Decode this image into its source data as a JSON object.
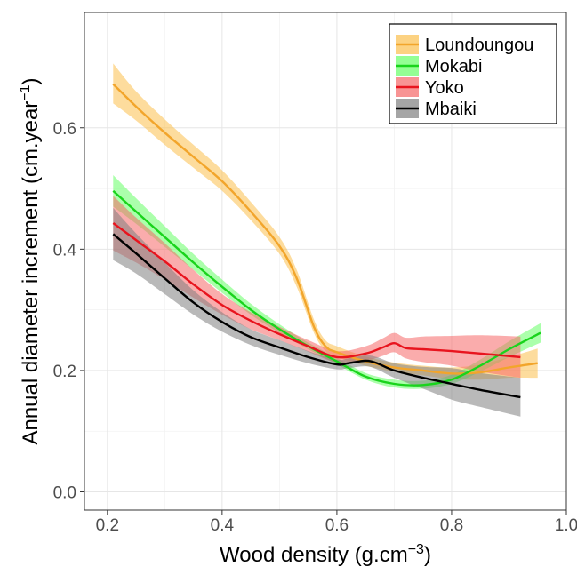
{
  "chart_data": {
    "type": "line",
    "title": "",
    "xlabel": "Wood density (g.cm",
    "xlabel_sup": "−3",
    "xlabel_end": ")",
    "ylabel": "Annual diameter increment (cm.year",
    "ylabel_sup": "−1",
    "ylabel_end": ")",
    "xlim": [
      0.16,
      1.0
    ],
    "ylim": [
      -0.03,
      0.79
    ],
    "x_ticks": [
      0.2,
      0.4,
      0.6,
      0.8,
      1.0
    ],
    "x_tick_labels": [
      "0.2",
      "0.4",
      "0.6",
      "0.8",
      "1.0"
    ],
    "y_ticks": [
      0.0,
      0.2,
      0.4,
      0.6
    ],
    "y_tick_labels": [
      "0.0",
      "0.2",
      "0.4",
      "0.6"
    ],
    "grid": true,
    "legend_position": "top-right",
    "series": [
      {
        "name": "Loundoungou",
        "color": "#f2a52b",
        "band_color": "#fbbf4d",
        "x": [
          0.21,
          0.25,
          0.3,
          0.35,
          0.4,
          0.45,
          0.5,
          0.53,
          0.56,
          0.58,
          0.6,
          0.65,
          0.7,
          0.75,
          0.8,
          0.85,
          0.9,
          0.95
        ],
        "y": [
          0.672,
          0.635,
          0.592,
          0.552,
          0.512,
          0.462,
          0.405,
          0.352,
          0.272,
          0.24,
          0.23,
          0.215,
          0.205,
          0.2,
          0.195,
          0.197,
          0.205,
          0.212
        ],
        "lower": [
          0.64,
          0.612,
          0.572,
          0.534,
          0.496,
          0.448,
          0.392,
          0.338,
          0.262,
          0.232,
          0.222,
          0.208,
          0.198,
          0.192,
          0.186,
          0.185,
          0.188,
          0.188
        ],
        "upper": [
          0.706,
          0.66,
          0.614,
          0.572,
          0.53,
          0.478,
          0.42,
          0.366,
          0.284,
          0.25,
          0.24,
          0.223,
          0.213,
          0.208,
          0.205,
          0.21,
          0.222,
          0.236
        ]
      },
      {
        "name": "Mokabi",
        "color": "#19d41c",
        "band_color": "#66ff66",
        "x": [
          0.21,
          0.25,
          0.3,
          0.35,
          0.4,
          0.45,
          0.5,
          0.55,
          0.6,
          0.65,
          0.7,
          0.75,
          0.8,
          0.85,
          0.9,
          0.955
        ],
        "y": [
          0.496,
          0.462,
          0.42,
          0.378,
          0.338,
          0.3,
          0.268,
          0.24,
          0.215,
          0.19,
          0.178,
          0.176,
          0.185,
          0.208,
          0.235,
          0.262
        ],
        "lower": [
          0.47,
          0.442,
          0.404,
          0.366,
          0.328,
          0.292,
          0.262,
          0.235,
          0.21,
          0.185,
          0.172,
          0.17,
          0.178,
          0.198,
          0.222,
          0.246
        ],
        "upper": [
          0.522,
          0.484,
          0.438,
          0.392,
          0.35,
          0.31,
          0.276,
          0.246,
          0.221,
          0.196,
          0.185,
          0.183,
          0.193,
          0.218,
          0.248,
          0.278
        ]
      },
      {
        "name": "Yoko",
        "color": "#e8141e",
        "band_color": "#f56767",
        "x": [
          0.21,
          0.25,
          0.3,
          0.35,
          0.4,
          0.45,
          0.5,
          0.55,
          0.6,
          0.65,
          0.68,
          0.7,
          0.72,
          0.75,
          0.8,
          0.85,
          0.92
        ],
        "y": [
          0.443,
          0.415,
          0.38,
          0.342,
          0.308,
          0.282,
          0.26,
          0.24,
          0.222,
          0.228,
          0.238,
          0.245,
          0.237,
          0.235,
          0.232,
          0.228,
          0.222
        ],
        "lower": [
          0.398,
          0.378,
          0.35,
          0.32,
          0.292,
          0.268,
          0.25,
          0.231,
          0.213,
          0.216,
          0.224,
          0.23,
          0.22,
          0.214,
          0.208,
          0.198,
          0.188
        ],
        "upper": [
          0.488,
          0.452,
          0.41,
          0.366,
          0.326,
          0.296,
          0.272,
          0.25,
          0.232,
          0.24,
          0.253,
          0.262,
          0.254,
          0.256,
          0.257,
          0.258,
          0.256
        ]
      },
      {
        "name": "Mbaiki",
        "color": "#000000",
        "band_color": "#7f7f7f",
        "x": [
          0.21,
          0.25,
          0.3,
          0.35,
          0.4,
          0.45,
          0.5,
          0.55,
          0.6,
          0.62,
          0.65,
          0.67,
          0.7,
          0.75,
          0.8,
          0.85,
          0.92
        ],
        "y": [
          0.425,
          0.393,
          0.352,
          0.312,
          0.28,
          0.255,
          0.238,
          0.222,
          0.21,
          0.212,
          0.216,
          0.212,
          0.2,
          0.188,
          0.178,
          0.168,
          0.156
        ],
        "lower": [
          0.382,
          0.36,
          0.326,
          0.292,
          0.264,
          0.242,
          0.226,
          0.212,
          0.202,
          0.204,
          0.207,
          0.202,
          0.188,
          0.17,
          0.152,
          0.14,
          0.124
        ],
        "upper": [
          0.468,
          0.426,
          0.378,
          0.332,
          0.296,
          0.268,
          0.25,
          0.232,
          0.218,
          0.22,
          0.225,
          0.222,
          0.212,
          0.206,
          0.204,
          0.196,
          0.188
        ]
      }
    ]
  }
}
